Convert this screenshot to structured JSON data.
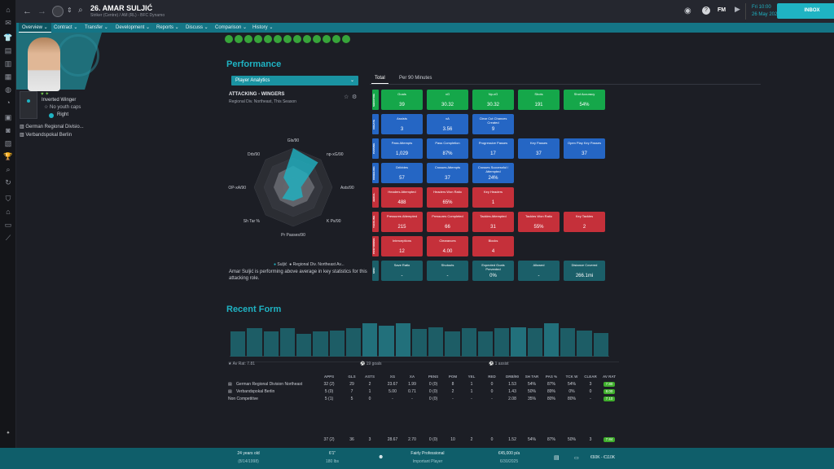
{
  "header": {
    "player_number_name": "26. AMAR SULJIĆ",
    "subtitle": "Striker (Centre) / AM (RL) - BFC Dynamo",
    "date_top": "Fri 10:00",
    "date_bottom": "26 May 2023",
    "inbox_label": "INBOX",
    "fm_label": "FM"
  },
  "nav": [
    "Overview",
    "Contract",
    "Transfer",
    "Development",
    "Reports",
    "Discuss",
    "Comparison",
    "History"
  ],
  "profile": {
    "role": "Inverted Winger",
    "youth_caps": "No youth caps",
    "foot": "Right",
    "competitions": [
      "German Regional Divisio...",
      "Verbandspokal Berlin"
    ]
  },
  "performance": {
    "title": "Performance",
    "dropdown": "Player Analytics",
    "tabs": [
      "Total",
      "Per 90 Minutes"
    ],
    "radar_title": "ATTACKING - WINGERS",
    "radar_subtitle": "Regional Div. Northeast, This Season",
    "radar_axes": [
      "Gls/90",
      "np-xG/90",
      "Asts/90",
      "K Ps/90",
      "Pr Passes/90",
      "Sh Tar %",
      "OP-xA/90",
      "Drb/90"
    ],
    "radar_legend": [
      "Suljić",
      "Regional Div. Northeast Av..."
    ],
    "summary": "Amar Suljić is performing above average in key statistics for this attacking role.",
    "row_labels": [
      "SHOOTING",
      "CREATE",
      "PASSING",
      "DRIBBLING",
      "AERIAL",
      "TACKLING",
      "POSITIONING",
      "MISC"
    ],
    "rows": [
      [
        {
          "l": "Goals",
          "v": "39",
          "c": "g"
        },
        {
          "l": "xG",
          "v": "30.32",
          "c": "g"
        },
        {
          "l": "Np-xG",
          "v": "30.32",
          "c": "g"
        },
        {
          "l": "Shots",
          "v": "191",
          "c": "g"
        },
        {
          "l": "Shot Accuracy",
          "v": "54%",
          "c": "g"
        }
      ],
      [
        {
          "l": "Assists",
          "v": "3",
          "c": "b"
        },
        {
          "l": "xA",
          "v": "3.56",
          "c": "b"
        },
        {
          "l": "Clear Cut Chances Created",
          "v": "9",
          "c": "b"
        }
      ],
      [
        {
          "l": "Pass Attempts",
          "v": "1,029",
          "c": "b"
        },
        {
          "l": "Pass Completion",
          "v": "87%",
          "c": "b"
        },
        {
          "l": "Progressive Passes",
          "v": "17",
          "c": "b"
        },
        {
          "l": "Key Passes",
          "v": "37",
          "c": "b"
        },
        {
          "l": "Open Play Key Passes",
          "v": "37",
          "c": "b"
        }
      ],
      [
        {
          "l": "Dribbles",
          "v": "57",
          "c": "b"
        },
        {
          "l": "Crosses Attempts",
          "v": "37",
          "c": "b"
        },
        {
          "l": "Crosses Successful / Attempted",
          "v": "24%",
          "c": "b"
        }
      ],
      [
        {
          "l": "Headers Attempted",
          "v": "488",
          "c": "r"
        },
        {
          "l": "Headers Won Ratio",
          "v": "65%",
          "c": "r"
        },
        {
          "l": "Key Headers",
          "v": "1",
          "c": "r"
        }
      ],
      [
        {
          "l": "Pressures Attempted",
          "v": "215",
          "c": "r"
        },
        {
          "l": "Pressures Completed",
          "v": "66",
          "c": "r"
        },
        {
          "l": "Tackles Attempted",
          "v": "31",
          "c": "r"
        },
        {
          "l": "Tackles Won Ratio",
          "v": "55%",
          "c": "r"
        },
        {
          "l": "Key Tackles",
          "v": "2",
          "c": "r"
        }
      ],
      [
        {
          "l": "Interceptions",
          "v": "12",
          "c": "r"
        },
        {
          "l": "Clearances",
          "v": "4.00",
          "c": "r"
        },
        {
          "l": "Blocks",
          "v": "4",
          "c": "r"
        }
      ],
      [
        {
          "l": "Save Ratio",
          "v": "-",
          "c": "t"
        },
        {
          "l": "Shutouts",
          "v": "-",
          "c": "t"
        },
        {
          "l": "Expected Goals Prevented",
          "v": "0%",
          "c": "t"
        },
        {
          "l": "Allowed",
          "v": "-",
          "c": "t"
        },
        {
          "l": "Distance Covered",
          "v": "266.1mi",
          "c": "t"
        }
      ]
    ]
  },
  "recent_form": {
    "title": "Recent Form",
    "bars": [
      0.45,
      0.5,
      0.44,
      0.5,
      0.4,
      0.44,
      0.46,
      0.5,
      0.58,
      0.55,
      0.58,
      0.48,
      0.52,
      0.44,
      0.5,
      0.44,
      0.5,
      0.52,
      0.5,
      0.58,
      0.5,
      0.46,
      0.42
    ],
    "highlight": [
      false,
      false,
      false,
      false,
      false,
      false,
      false,
      false,
      true,
      true,
      true,
      false,
      false,
      false,
      false,
      false,
      false,
      true,
      false,
      true,
      false,
      false,
      false
    ],
    "summary": [
      "Av Rat: 7.81",
      "19 goals",
      "1 assist"
    ]
  },
  "stats": {
    "headers": [
      "APPS",
      "GLS",
      "ASTS",
      "XG",
      "XA",
      "PENS",
      "POM",
      "YEL",
      "RED",
      "DRB/90",
      "SH TAR",
      "PAS %",
      "TCK W",
      "CLEAR",
      "AV RAT"
    ],
    "rows": [
      {
        "name": "German Regional Division Northeast",
        "vals": [
          "32 (2)",
          "29",
          "2",
          "23.67",
          "1.99",
          "0 (0)",
          "8",
          "1",
          "0",
          "1.53",
          "54%",
          "87%",
          "54%",
          "3"
        ],
        "rat": "7.80"
      },
      {
        "name": "Verbandspokal Berlin",
        "vals": [
          "5 (0)",
          "7",
          "1",
          "5.00",
          "0.71",
          "0 (0)",
          "2",
          "1",
          "0",
          "1.43",
          "50%",
          "89%",
          "0%",
          "0"
        ],
        "rat": "8.00"
      },
      {
        "name": "Non Competitive",
        "vals": [
          "5 (1)",
          "5",
          "0",
          "-",
          "-",
          "0 (0)",
          "-",
          "-",
          "-",
          "2.08",
          "35%",
          "80%",
          "80%",
          "-"
        ],
        "rat": "7.10"
      }
    ],
    "total": {
      "vals": [
        "37 (2)",
        "36",
        "3",
        "28.67",
        "2.70",
        "0 (0)",
        "10",
        "2",
        "0",
        "1.52",
        "54%",
        "87%",
        "50%",
        "3"
      ],
      "rat": "7.84"
    }
  },
  "footer": {
    "age": "24 years old",
    "dob": "(8/14/1998)",
    "height": "6'1\"",
    "weight": "180 lbs",
    "personality": "Fairly Professional",
    "status": "Important Player",
    "wage": "€45,000 p/a",
    "contract_end": "6/30/2025",
    "value": "€60K - €110K"
  },
  "colors": {
    "accent": "#1fb3c3",
    "nav": "#147586",
    "green": "#15a74a",
    "blue": "#2566c4",
    "red": "#c5303a",
    "teal": "#1b5f69"
  }
}
